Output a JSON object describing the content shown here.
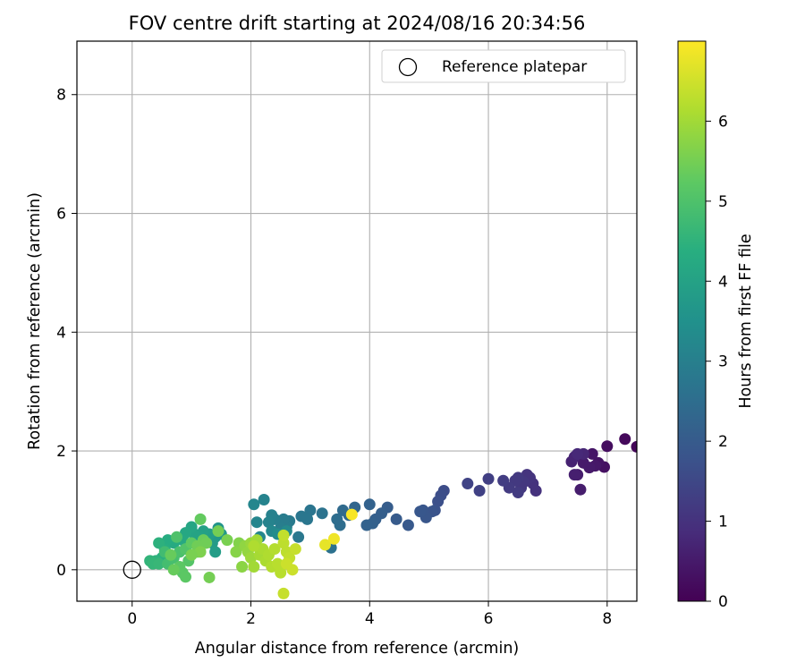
{
  "chart_data": {
    "type": "scatter",
    "title": "FOV centre drift starting at 2024/08/16 20:34:56",
    "xlabel": "Angular distance from reference (arcmin)",
    "ylabel": "Rotation from reference (arcmin)",
    "xlim": [
      -0.93,
      8.5
    ],
    "ylim": [
      -0.53,
      8.9
    ],
    "xticks": [
      0,
      2,
      4,
      6,
      8
    ],
    "yticks": [
      0,
      2,
      4,
      6,
      8
    ],
    "grid": true,
    "legend": {
      "placement": "top-right",
      "entries": [
        "Reference platepar"
      ]
    },
    "reference_point": {
      "name": "Reference platepar",
      "x": 0,
      "y": 0
    },
    "colorbar": {
      "label": "Hours from first FF file",
      "colormap": "viridis",
      "range": [
        0,
        7
      ],
      "ticks": [
        0,
        1,
        2,
        3,
        4,
        5,
        6
      ]
    },
    "series": [
      {
        "name": "FOV centre",
        "note": "each point: [x, y, hours]",
        "points": [
          [
            8.5,
            2.07,
            0.1
          ],
          [
            8.3,
            2.2,
            0.15
          ],
          [
            8.0,
            2.08,
            0.25
          ],
          [
            7.95,
            1.73,
            0.3
          ],
          [
            7.85,
            1.8,
            0.35
          ],
          [
            7.75,
            1.95,
            0.4
          ],
          [
            7.8,
            1.75,
            0.45
          ],
          [
            7.7,
            1.72,
            0.5
          ],
          [
            7.6,
            1.8,
            0.5
          ],
          [
            7.55,
            1.35,
            0.55
          ],
          [
            7.5,
            1.6,
            0.55
          ],
          [
            7.45,
            1.6,
            0.6
          ],
          [
            7.4,
            1.82,
            0.65
          ],
          [
            7.45,
            1.9,
            0.7
          ],
          [
            7.6,
            1.95,
            0.75
          ],
          [
            7.5,
            1.95,
            0.8
          ],
          [
            6.8,
            1.33,
            1.0
          ],
          [
            6.75,
            1.45,
            1.0
          ],
          [
            6.7,
            1.55,
            1.05
          ],
          [
            6.65,
            1.6,
            1.05
          ],
          [
            6.6,
            1.48,
            1.1
          ],
          [
            6.55,
            1.38,
            1.1
          ],
          [
            6.5,
            1.55,
            1.15
          ],
          [
            6.45,
            1.5,
            1.15
          ],
          [
            6.5,
            1.3,
            1.2
          ],
          [
            6.35,
            1.38,
            1.2
          ],
          [
            6.25,
            1.5,
            1.25
          ],
          [
            6.0,
            1.53,
            1.3
          ],
          [
            5.85,
            1.33,
            1.35
          ],
          [
            5.65,
            1.45,
            1.4
          ],
          [
            5.25,
            1.33,
            1.6
          ],
          [
            5.2,
            1.25,
            1.65
          ],
          [
            5.15,
            1.15,
            1.7
          ],
          [
            5.1,
            1.0,
            1.75
          ],
          [
            5.05,
            0.98,
            1.8
          ],
          [
            4.95,
            0.88,
            1.85
          ],
          [
            4.9,
            1.0,
            1.85
          ],
          [
            4.85,
            0.98,
            1.9
          ],
          [
            4.65,
            0.75,
            1.95
          ],
          [
            4.45,
            0.85,
            2.0
          ],
          [
            4.3,
            1.05,
            2.05
          ],
          [
            4.2,
            0.95,
            2.1
          ],
          [
            4.1,
            0.85,
            2.1
          ],
          [
            4.05,
            0.78,
            2.15
          ],
          [
            4.0,
            1.1,
            2.2
          ],
          [
            3.95,
            0.75,
            2.2
          ],
          [
            3.75,
            1.05,
            2.3
          ],
          [
            3.65,
            0.92,
            2.35
          ],
          [
            3.55,
            1.0,
            2.4
          ],
          [
            3.5,
            0.75,
            2.5
          ],
          [
            3.45,
            0.85,
            2.5
          ],
          [
            3.35,
            0.37,
            2.6
          ],
          [
            3.2,
            0.95,
            2.65
          ],
          [
            3.0,
            1.0,
            2.7
          ],
          [
            2.95,
            0.85,
            2.75
          ],
          [
            2.85,
            0.9,
            2.75
          ],
          [
            2.8,
            0.55,
            2.8
          ],
          [
            2.65,
            0.82,
            2.85
          ],
          [
            2.6,
            0.72,
            2.9
          ],
          [
            2.55,
            0.85,
            2.9
          ],
          [
            2.5,
            0.7,
            2.95
          ],
          [
            2.4,
            0.85,
            3.0
          ],
          [
            2.35,
            0.92,
            3.05
          ],
          [
            2.3,
            0.8,
            3.1
          ],
          [
            2.22,
            1.18,
            3.1
          ],
          [
            2.1,
            0.8,
            3.15
          ],
          [
            2.05,
            1.1,
            3.2
          ],
          [
            2.15,
            0.55,
            3.2
          ],
          [
            2.35,
            0.65,
            3.25
          ],
          [
            2.6,
            0.65,
            3.3
          ],
          [
            2.45,
            0.6,
            3.35
          ],
          [
            1.45,
            0.7,
            3.6
          ],
          [
            1.5,
            0.6,
            3.7
          ],
          [
            1.4,
            0.55,
            3.75
          ],
          [
            1.35,
            0.45,
            3.8
          ],
          [
            1.4,
            0.3,
            3.85
          ],
          [
            1.3,
            0.6,
            3.9
          ],
          [
            1.2,
            0.65,
            3.95
          ],
          [
            1.15,
            0.55,
            4.0
          ],
          [
            1.05,
            0.6,
            4.05
          ],
          [
            1.0,
            0.72,
            4.1
          ],
          [
            0.9,
            0.62,
            4.15
          ],
          [
            0.85,
            0.5,
            4.2
          ],
          [
            0.7,
            0.45,
            4.25
          ],
          [
            0.6,
            0.5,
            4.3
          ],
          [
            0.55,
            0.35,
            4.35
          ],
          [
            0.5,
            0.2,
            4.4
          ],
          [
            0.45,
            0.45,
            4.45
          ],
          [
            0.4,
            0.15,
            4.5
          ],
          [
            0.3,
            0.15,
            4.55
          ],
          [
            0.35,
            0.1,
            4.6
          ],
          [
            0.45,
            0.1,
            4.65
          ],
          [
            0.55,
            0.3,
            4.8
          ],
          [
            0.6,
            0.1,
            4.85
          ],
          [
            0.7,
            0.2,
            4.9
          ],
          [
            0.8,
            0.3,
            4.95
          ],
          [
            0.75,
            0.55,
            5.0
          ],
          [
            0.9,
            0.35,
            5.05
          ],
          [
            0.95,
            0.15,
            5.1
          ],
          [
            0.85,
            -0.05,
            5.15
          ],
          [
            0.9,
            -0.12,
            5.2
          ],
          [
            0.8,
            0.05,
            5.2
          ],
          [
            1.0,
            0.45,
            5.25
          ],
          [
            1.1,
            0.3,
            5.3
          ],
          [
            1.15,
            0.85,
            5.3
          ],
          [
            0.65,
            0.25,
            5.35
          ],
          [
            0.7,
            0.0,
            5.35
          ],
          [
            1.2,
            0.5,
            5.4
          ],
          [
            1.25,
            0.45,
            5.45
          ],
          [
            1.1,
            0.4,
            5.45
          ],
          [
            1.3,
            -0.13,
            5.5
          ],
          [
            1.45,
            0.65,
            5.5
          ],
          [
            1.6,
            0.5,
            5.55
          ],
          [
            1.15,
            0.3,
            5.6
          ],
          [
            1.0,
            0.25,
            5.55
          ],
          [
            1.8,
            0.45,
            5.65
          ],
          [
            1.75,
            0.3,
            5.7
          ],
          [
            1.85,
            0.05,
            5.75
          ],
          [
            1.9,
            0.4,
            5.8
          ],
          [
            1.95,
            0.3,
            5.85
          ],
          [
            2.0,
            0.45,
            5.9
          ],
          [
            2.0,
            0.2,
            5.95
          ],
          [
            2.05,
            0.05,
            6.0
          ],
          [
            2.1,
            0.5,
            6.0
          ],
          [
            2.15,
            0.25,
            6.05
          ],
          [
            2.2,
            0.35,
            6.1
          ],
          [
            2.25,
            0.15,
            6.1
          ],
          [
            2.3,
            0.25,
            6.15
          ],
          [
            2.05,
            0.4,
            6.15
          ],
          [
            2.35,
            0.05,
            6.2
          ],
          [
            2.4,
            0.35,
            6.2
          ],
          [
            2.45,
            0.1,
            6.25
          ],
          [
            2.5,
            -0.05,
            6.25
          ],
          [
            2.55,
            0.45,
            6.3
          ],
          [
            2.6,
            0.3,
            6.3
          ],
          [
            2.55,
            0.58,
            6.35
          ],
          [
            2.65,
            0.2,
            6.35
          ],
          [
            2.75,
            0.35,
            6.4
          ],
          [
            2.55,
            -0.4,
            6.4
          ],
          [
            2.7,
            0.0,
            6.45
          ],
          [
            2.6,
            0.1,
            6.45
          ],
          [
            3.25,
            0.42,
            6.75
          ],
          [
            3.4,
            0.52,
            6.85
          ],
          [
            3.7,
            0.93,
            6.95
          ]
        ]
      }
    ],
    "colors": {
      "reference_marker": "#000000",
      "grid": "#b0b0b0"
    }
  }
}
